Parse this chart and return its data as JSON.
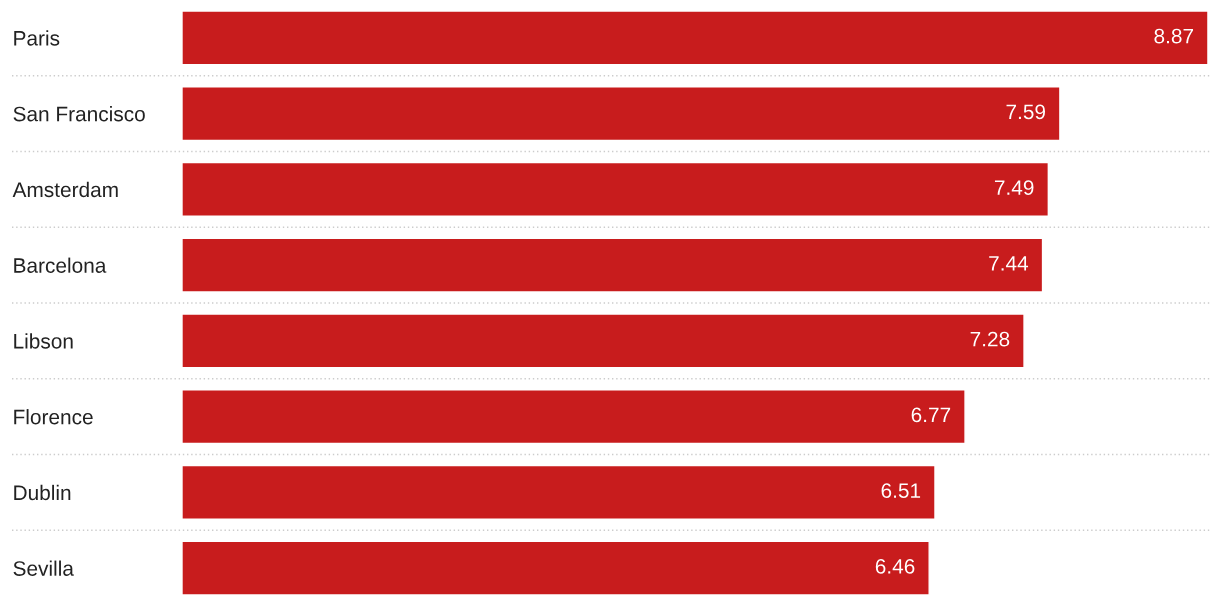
{
  "chart_data": {
    "type": "bar",
    "orientation": "horizontal",
    "categories": [
      "Paris",
      "San Francisco",
      "Amsterdam",
      "Barcelona",
      "Libson",
      "Florence",
      "Dublin",
      "Sevilla"
    ],
    "values": [
      8.87,
      7.59,
      7.49,
      7.44,
      7.28,
      6.77,
      6.51,
      6.46
    ],
    "color": "#c81c1d",
    "data_labels": true,
    "grid": "y",
    "tick_labels": "y"
  }
}
